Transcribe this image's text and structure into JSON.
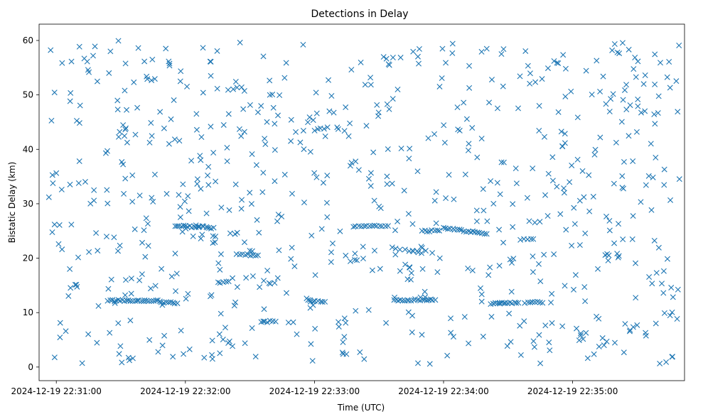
{
  "chart_data": {
    "type": "scatter",
    "title": "Detections in Delay",
    "xlabel": "Time (UTC)",
    "ylabel": "Bistatic Delay (km)",
    "marker": "x",
    "color": "#1f77b4",
    "grid": false,
    "legend": "none",
    "xlim": [
      "2024-12-19 22:30:52",
      "2024-12-19 22:35:52"
    ],
    "ylim": [
      -2.5,
      63
    ],
    "xticks": [
      "2024-12-19 22:31:00",
      "2024-12-19 22:32:00",
      "2024-12-19 22:33:00",
      "2024-12-19 22:34:00",
      "2024-12-19 22:35:00"
    ],
    "yticks": [
      0,
      10,
      20,
      30,
      40,
      50,
      60
    ],
    "tracks": [
      {
        "x_start": "2024-12-19 22:31:24",
        "x_end": "2024-12-19 22:31:48",
        "y_start": 12.2,
        "y_end": 12.2,
        "n": 26
      },
      {
        "x_start": "2024-12-19 22:31:49",
        "x_end": "2024-12-19 22:31:56",
        "y_start": 11.8,
        "y_end": 11.8,
        "n": 8
      },
      {
        "x_start": "2024-12-19 22:31:55",
        "x_end": "2024-12-19 22:32:06",
        "y_start": 26.0,
        "y_end": 25.7,
        "n": 12
      },
      {
        "x_start": "2024-12-19 22:32:05",
        "x_end": "2024-12-19 22:32:13",
        "y_start": 26.0,
        "y_end": 25.5,
        "n": 10
      },
      {
        "x_start": "2024-12-19 22:32:24",
        "x_end": "2024-12-19 22:32:34",
        "y_start": 20.8,
        "y_end": 20.5,
        "n": 9
      },
      {
        "x_start": "2024-12-19 22:32:57",
        "x_end": "2024-12-19 22:33:05",
        "y_start": 12.2,
        "y_end": 12.0,
        "n": 8
      },
      {
        "x_start": "2024-12-19 22:33:18",
        "x_end": "2024-12-19 22:33:34",
        "y_start": 25.8,
        "y_end": 26.0,
        "n": 14
      },
      {
        "x_start": "2024-12-19 22:33:37",
        "x_end": "2024-12-19 22:33:56",
        "y_start": 12.3,
        "y_end": 12.4,
        "n": 20
      },
      {
        "x_start": "2024-12-19 22:33:36",
        "x_end": "2024-12-19 22:33:50",
        "y_start": 22.0,
        "y_end": 21.0,
        "n": 8
      },
      {
        "x_start": "2024-12-19 22:33:50",
        "x_end": "2024-12-19 22:33:58",
        "y_start": 25.0,
        "y_end": 25.0,
        "n": 8
      },
      {
        "x_start": "2024-12-19 22:34:00",
        "x_end": "2024-12-19 22:34:20",
        "y_start": 25.5,
        "y_end": 24.5,
        "n": 20
      },
      {
        "x_start": "2024-12-19 22:34:22",
        "x_end": "2024-12-19 22:34:35",
        "y_start": 11.7,
        "y_end": 11.8,
        "n": 14
      },
      {
        "x_start": "2024-12-19 22:34:38",
        "x_end": "2024-12-19 22:34:46",
        "y_start": 11.8,
        "y_end": 11.9,
        "n": 8
      },
      {
        "x_start": "2024-12-19 22:34:36",
        "x_end": "2024-12-19 22:34:42",
        "y_start": 23.5,
        "y_end": 23.5,
        "n": 5
      },
      {
        "x_start": "2024-12-19 22:32:35",
        "x_end": "2024-12-19 22:32:42",
        "y_start": 8.2,
        "y_end": 8.5,
        "n": 6
      },
      {
        "x_start": "2024-12-19 22:33:00",
        "x_end": "2024-12-19 22:33:06",
        "y_start": 43.5,
        "y_end": 44.0,
        "n": 5
      },
      {
        "x_start": "2024-12-19 22:32:20",
        "x_end": "2024-12-19 22:32:26",
        "y_start": 51.0,
        "y_end": 51.5,
        "n": 4
      },
      {
        "x_start": "2024-12-19 22:31:42",
        "x_end": "2024-12-19 22:31:46",
        "y_start": 52.8,
        "y_end": 52.8,
        "n": 3
      },
      {
        "x_start": "2024-12-19 22:32:15",
        "x_end": "2024-12-19 22:32:20",
        "y_start": 15.5,
        "y_end": 15.7,
        "n": 5
      }
    ],
    "background_points": 720
  }
}
